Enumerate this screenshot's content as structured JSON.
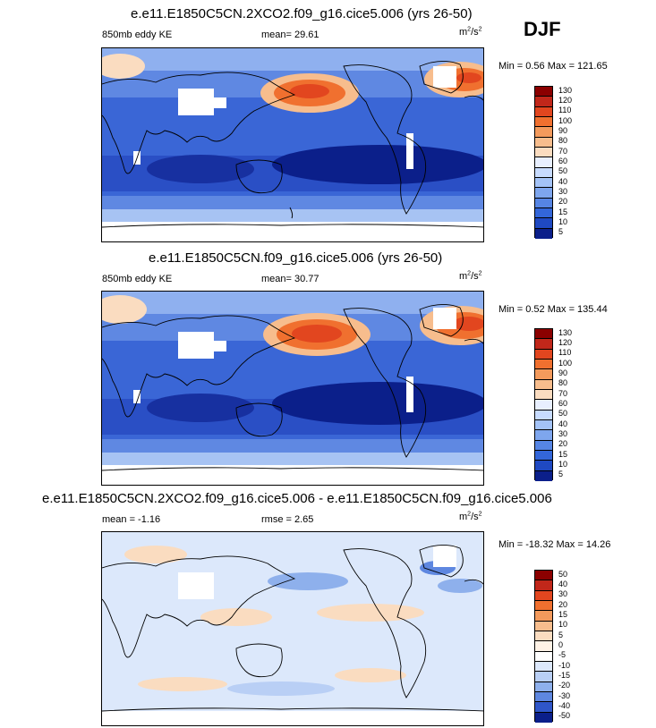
{
  "season": "DJF",
  "panels": [
    {
      "title": "e.e11.E1850C5CN.2XCO2.f09_g16.cice5.006 (yrs 26-50)",
      "left_label": "850mb eddy KE",
      "center_label": "mean=  29.61",
      "units_base": "m",
      "units_exp1": "2",
      "units_mid": "/s",
      "units_exp2": "2",
      "minmax": "Min =   0.56 Max = 121.65",
      "colorbar_labels": [
        "130",
        "120",
        "110",
        "100",
        "90",
        "80",
        "70",
        "60",
        "50",
        "40",
        "30",
        "20",
        "15",
        "10",
        "5"
      ],
      "colorbar_colors": [
        "#8b0000",
        "#c1271a",
        "#e2461f",
        "#f0702f",
        "#f39a5c",
        "#f7bd8d",
        "#fadcc0",
        "#e8efff",
        "#c7dbff",
        "#a4c3f7",
        "#7ea6ee",
        "#5685e4",
        "#3366d9",
        "#1f49c2",
        "#0b1f8a"
      ]
    },
    {
      "title": "e.e11.E1850C5CN.f09_g16.cice5.006 (yrs 26-50)",
      "left_label": "850mb eddy KE",
      "center_label": "mean=  30.77",
      "units_base": "m",
      "units_exp1": "2",
      "units_mid": "/s",
      "units_exp2": "2",
      "minmax": "Min =   0.52 Max = 135.44",
      "colorbar_labels": [
        "130",
        "120",
        "110",
        "100",
        "90",
        "80",
        "70",
        "60",
        "50",
        "40",
        "30",
        "20",
        "15",
        "10",
        "5"
      ],
      "colorbar_colors": [
        "#8b0000",
        "#c1271a",
        "#e2461f",
        "#f0702f",
        "#f39a5c",
        "#f7bd8d",
        "#fadcc0",
        "#e8efff",
        "#c7dbff",
        "#a4c3f7",
        "#7ea6ee",
        "#5685e4",
        "#3366d9",
        "#1f49c2",
        "#0b1f8a"
      ]
    },
    {
      "title": "e.e11.E1850C5CN.2XCO2.f09_g16.cice5.006 - e.e11.E1850C5CN.f09_g16.cice5.006",
      "left_label": "mean =  -1.16",
      "center_label": "rmse =   2.65",
      "units_base": "m",
      "units_exp1": "2",
      "units_mid": "/s",
      "units_exp2": "2",
      "minmax": "Min = -18.32 Max =  14.26",
      "colorbar_labels": [
        "50",
        "40",
        "30",
        "20",
        "15",
        "10",
        "5",
        "0",
        "-5",
        "-10",
        "-15",
        "-20",
        "-30",
        "-40",
        "-50"
      ],
      "colorbar_colors": [
        "#8b0000",
        "#c1271a",
        "#e2461f",
        "#f0702f",
        "#f39a5c",
        "#f7bd8d",
        "#fadcc0",
        "#fff2e6",
        "#ffffff",
        "#dce8fb",
        "#b9cff5",
        "#8eb0ec",
        "#5e87e0",
        "#2f56c9",
        "#0b1f8a"
      ]
    }
  ]
}
